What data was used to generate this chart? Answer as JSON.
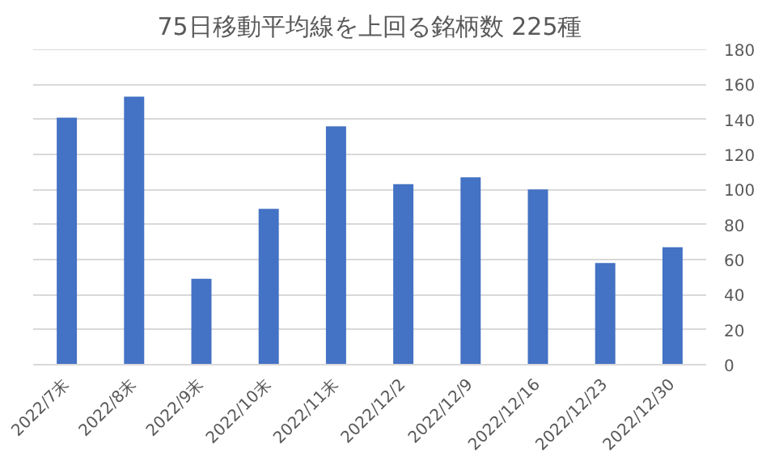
{
  "chart_data": {
    "type": "bar",
    "title": "75日移動平均線を上回る銘柄数 225種",
    "categories": [
      "2022/7末",
      "2022/8末",
      "2022/9末",
      "2022/10末",
      "2022/11末",
      "2022/12/2",
      "2022/12/9",
      "2022/12/16",
      "2022/12/23",
      "2022/12/30"
    ],
    "values": [
      141,
      153,
      49,
      89,
      136,
      103,
      107,
      100,
      58,
      67
    ],
    "color": "#4472c4",
    "ylim": [
      0,
      180
    ],
    "yticks": [
      0,
      20,
      40,
      60,
      80,
      100,
      120,
      140,
      160,
      180
    ],
    "grid": "y"
  }
}
